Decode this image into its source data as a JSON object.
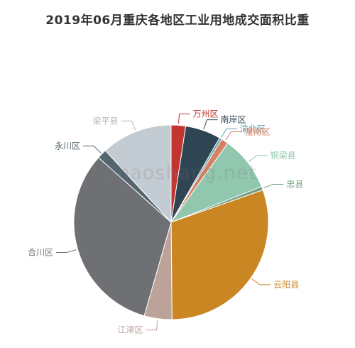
{
  "chart_data": {
    "type": "pie",
    "title": "2019年06月重庆各地区工业用地成交面积比重",
    "legend": "none",
    "slices": [
      {
        "label": "万州区",
        "value": 2.4,
        "color": "#c23531",
        "label_color": "#c23531"
      },
      {
        "label": "南岸区",
        "value": 5.9,
        "color": "#2f4554",
        "label_color": "#2f4554"
      },
      {
        "label": "渝北区",
        "value": 0.4,
        "color": "#61a0a8",
        "label_color": "#61a0a8"
      },
      {
        "label": "潼南区",
        "value": 1.2,
        "color": "#d48265",
        "label_color": "#d48265"
      },
      {
        "label": "铜梁县",
        "value": 9.1,
        "color": "#91c7ae",
        "label_color": "#91c7ae"
      },
      {
        "label": "忠县",
        "value": 0.6,
        "color": "#749f83",
        "label_color": "#749f83"
      },
      {
        "label": "云阳县",
        "value": 30.2,
        "color": "#ca8622",
        "label_color": "#ca8622"
      },
      {
        "label": "江津区",
        "value": 4.6,
        "color": "#bda29a",
        "label_color": "#bda29a"
      },
      {
        "label": "合川区",
        "value": 32.1,
        "color": "#6e7074",
        "label_color": "#6e7074"
      },
      {
        "label": "永川区",
        "value": 1.6,
        "color": "#546570",
        "label_color": "#546570"
      },
      {
        "label": "梁平县",
        "value": 11.8,
        "color": "#c4ccd3",
        "label_color": "#b0b8c0"
      }
    ]
  },
  "watermark": "zhaoshang.net"
}
